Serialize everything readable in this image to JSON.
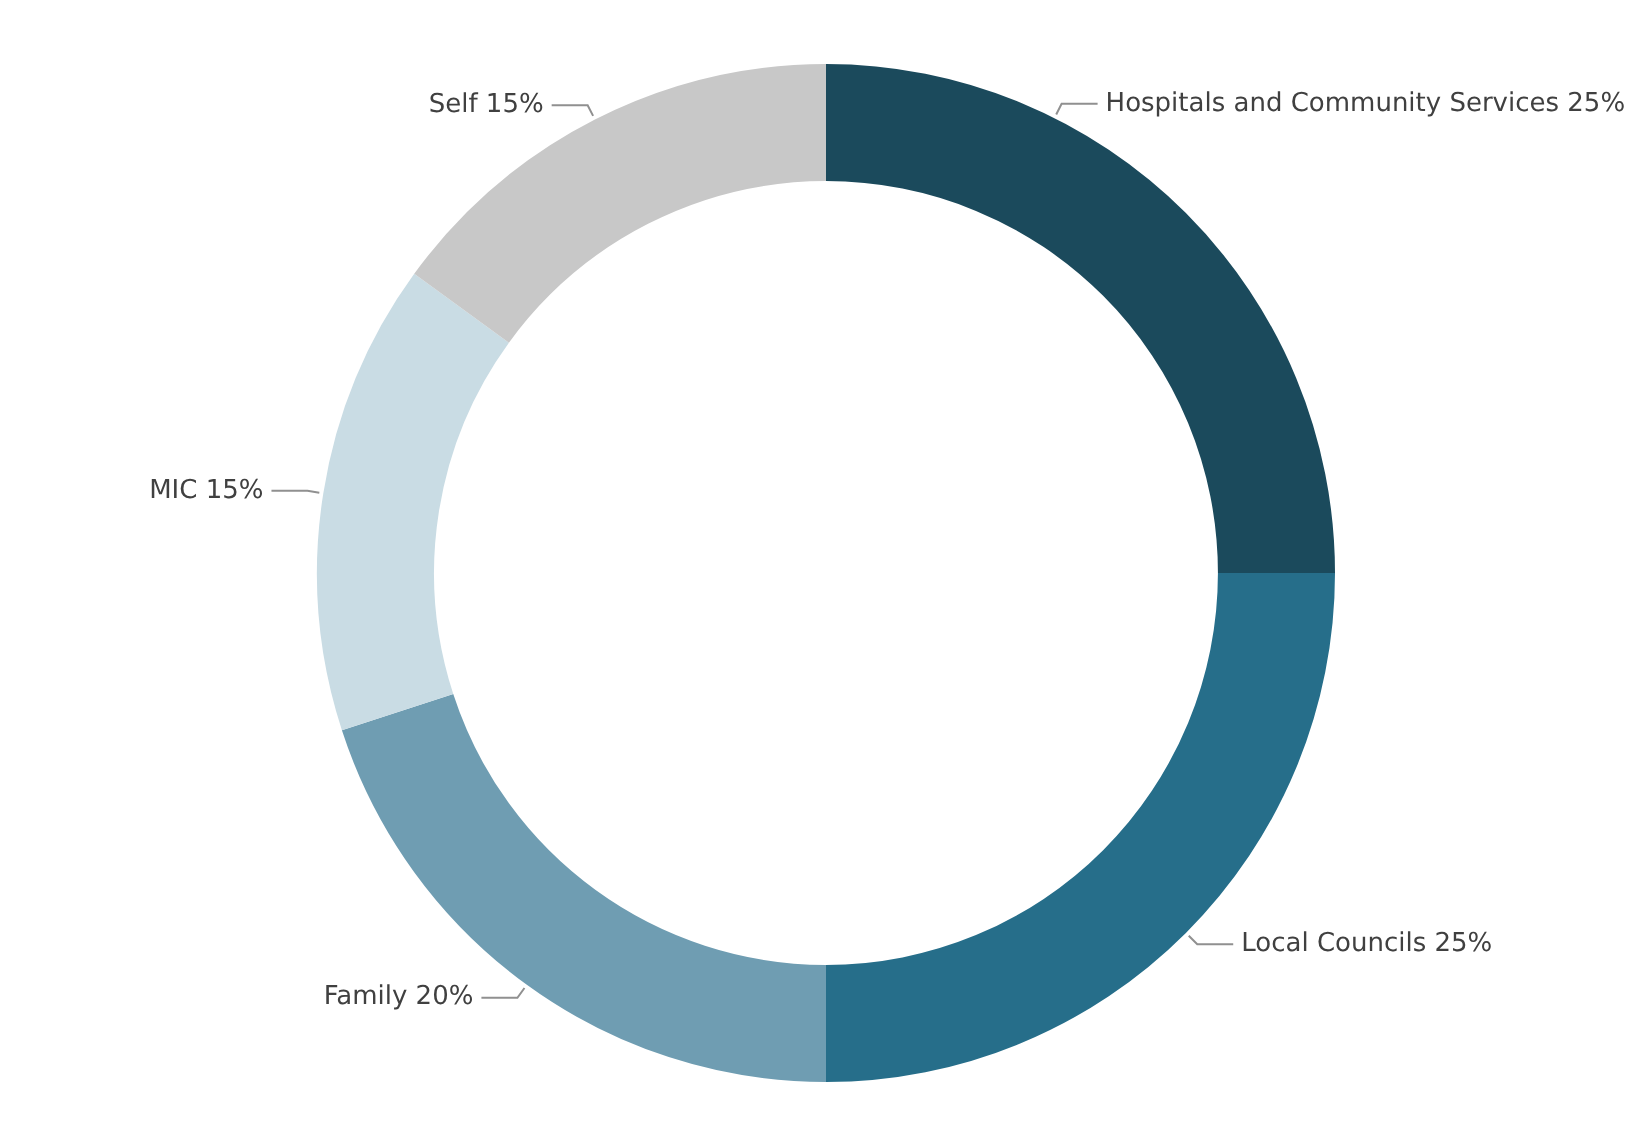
{
  "chart_data": {
    "type": "donut",
    "categories": [
      "Hospitals and Community Services",
      "Local Councils",
      "Family",
      "MIC",
      "Self"
    ],
    "values": [
      25,
      25,
      20,
      15,
      15
    ],
    "value_labels": [
      "25%",
      "25%",
      "20%",
      "15%",
      "15%"
    ],
    "colors": [
      "#1b4a5c",
      "#266e8a",
      "#6f9db2",
      "#c9dce4",
      "#c8c8c8"
    ],
    "legend": false
  }
}
